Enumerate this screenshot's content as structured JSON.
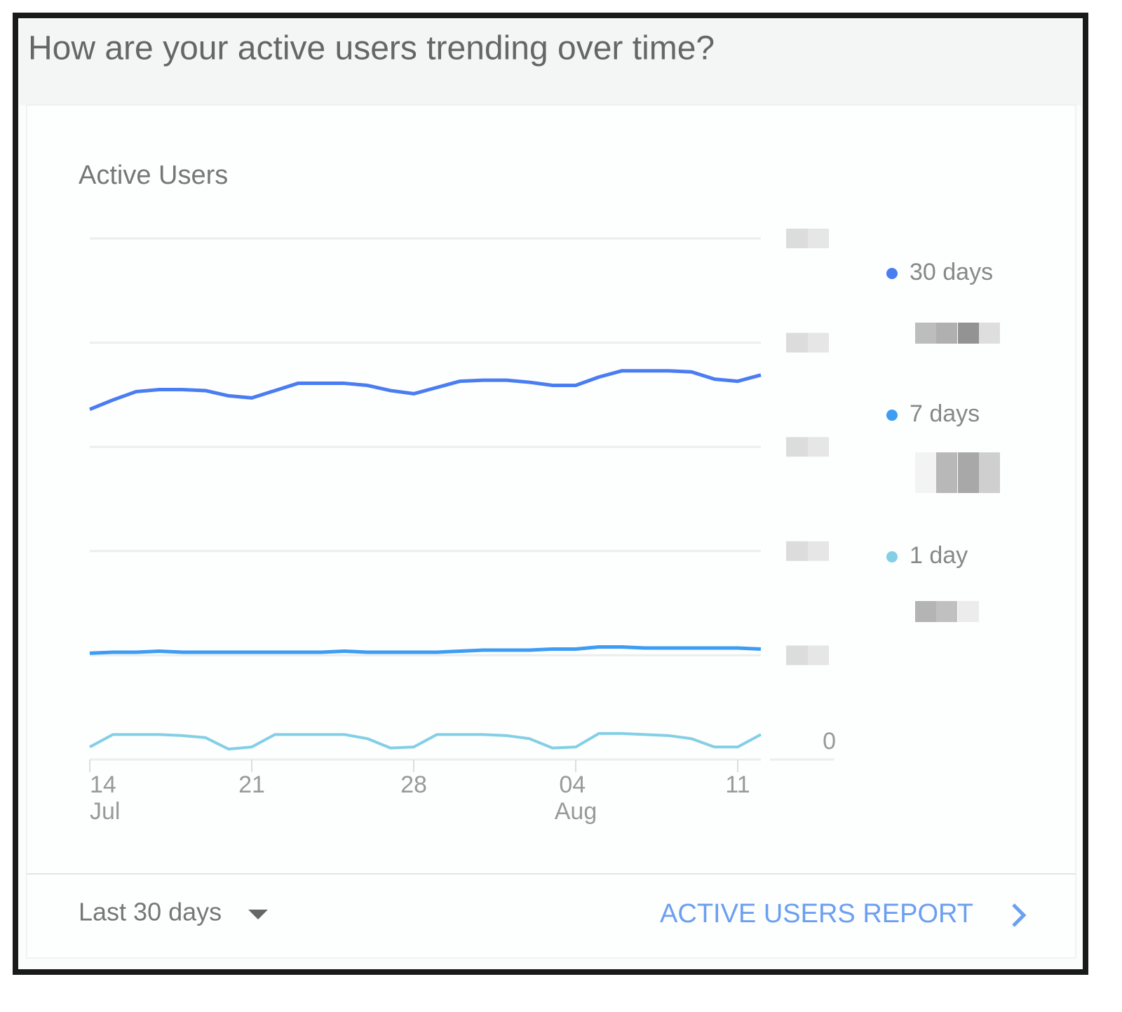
{
  "header": {
    "title": "How are your active users trending over time?"
  },
  "chart_data": {
    "type": "line",
    "title": "Active Users",
    "categories": [
      "14 Jul",
      null,
      null,
      null,
      null,
      null,
      null,
      "21",
      null,
      null,
      null,
      null,
      null,
      null,
      "28",
      null,
      null,
      null,
      null,
      null,
      null,
      "04 Aug",
      null,
      null,
      null,
      null,
      null,
      null,
      "11",
      null
    ],
    "series": [
      {
        "name": "30 days",
        "color": "#4a7cf2",
        "values": [
          3.36,
          3.45,
          3.53,
          3.55,
          3.55,
          3.54,
          3.49,
          3.47,
          3.54,
          3.61,
          3.61,
          3.61,
          3.59,
          3.54,
          3.51,
          3.57,
          3.63,
          3.64,
          3.64,
          3.62,
          3.59,
          3.59,
          3.67,
          3.73,
          3.73,
          3.73,
          3.72,
          3.65,
          3.63,
          3.69
        ]
      },
      {
        "name": "7 days",
        "color": "#3d9cf3",
        "values": [
          1.02,
          1.03,
          1.03,
          1.04,
          1.03,
          1.03,
          1.03,
          1.03,
          1.03,
          1.03,
          1.03,
          1.04,
          1.03,
          1.03,
          1.03,
          1.03,
          1.04,
          1.05,
          1.05,
          1.05,
          1.06,
          1.06,
          1.08,
          1.08,
          1.07,
          1.07,
          1.07,
          1.07,
          1.07,
          1.06
        ]
      },
      {
        "name": "1 day",
        "color": "#83cfe6",
        "values": [
          0.12,
          0.24,
          0.24,
          0.24,
          0.23,
          0.21,
          0.1,
          0.12,
          0.24,
          0.24,
          0.24,
          0.24,
          0.2,
          0.11,
          0.12,
          0.24,
          0.24,
          0.24,
          0.23,
          0.2,
          0.11,
          0.12,
          0.25,
          0.25,
          0.24,
          0.23,
          0.2,
          0.12,
          0.12,
          0.24
        ]
      }
    ],
    "ylim": [
      0,
      5
    ],
    "yticks": [
      0,
      {
        "value": 1,
        "label": null
      },
      {
        "value": 2,
        "label": null
      },
      {
        "value": 3,
        "label": null
      },
      {
        "value": 4,
        "label": null
      },
      {
        "value": 5,
        "label": null
      }
    ],
    "grid": true,
    "legend": "right"
  },
  "footer": {
    "range": "Last 30 days",
    "link": "ACTIVE USERS REPORT"
  }
}
